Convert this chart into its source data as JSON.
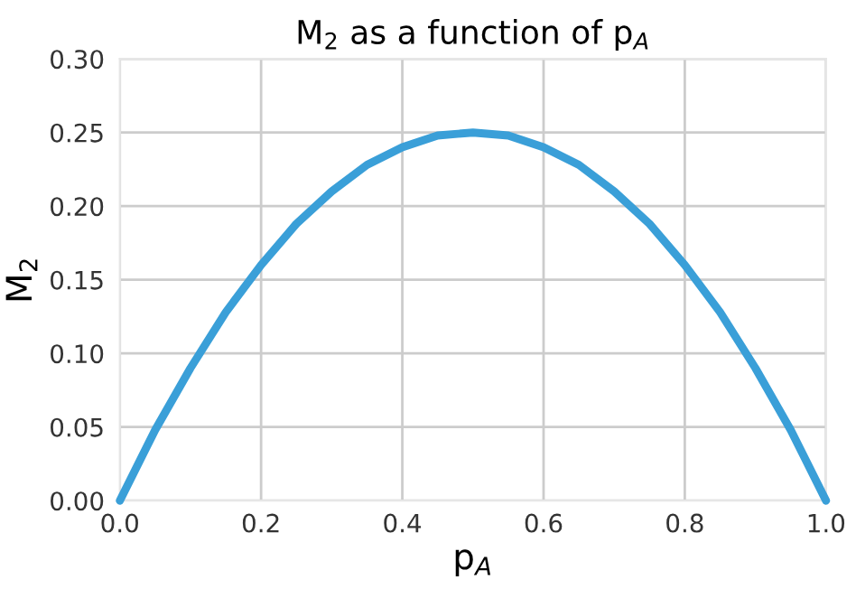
{
  "chart_data": {
    "type": "line",
    "title": "M$_{2}$ as a function of p$_{A}$",
    "xlabel": "p$_{A}$",
    "ylabel": "M$_{2}$",
    "series": [
      {
        "color": "#3a9fd8",
        "x": [
          0,
          0.05,
          0.1,
          0.15,
          0.2,
          0.25,
          0.3,
          0.35,
          0.4,
          0.45,
          0.5,
          0.55,
          0.6,
          0.65,
          0.7,
          0.75,
          0.8,
          0.85,
          0.9,
          0.95,
          1.0
        ],
        "values": [
          0,
          0.048,
          0.09,
          0.128,
          0.16,
          0.188,
          0.21,
          0.228,
          0.24,
          0.248,
          0.25,
          0.248,
          0.24,
          0.228,
          0.21,
          0.188,
          0.16,
          0.128,
          0.09,
          0.048,
          0
        ]
      }
    ],
    "xlim": [
      0,
      1.0
    ],
    "ylim": [
      0,
      0.3
    ],
    "xticks": [
      {
        "value": 0,
        "label": "0.0"
      },
      {
        "value": 0.2,
        "label": "0.2"
      },
      {
        "value": 0.4,
        "label": "0.4"
      },
      {
        "value": 0.6,
        "label": "0.6"
      },
      {
        "value": 0.8,
        "label": "0.8"
      },
      {
        "value": 1.0,
        "label": "1.0"
      }
    ],
    "yticks": [
      {
        "value": 0,
        "label": "0.00"
      },
      {
        "value": 0.05,
        "label": "0.05"
      },
      {
        "value": 0.1,
        "label": "0.10"
      },
      {
        "value": 0.15,
        "label": "0.15"
      },
      {
        "value": 0.2,
        "label": "0.20"
      },
      {
        "value": 0.25,
        "label": "0.25"
      },
      {
        "value": 0.3,
        "label": "0.30"
      }
    ],
    "grid": true,
    "marker": "none",
    "line_style": "solid"
  }
}
